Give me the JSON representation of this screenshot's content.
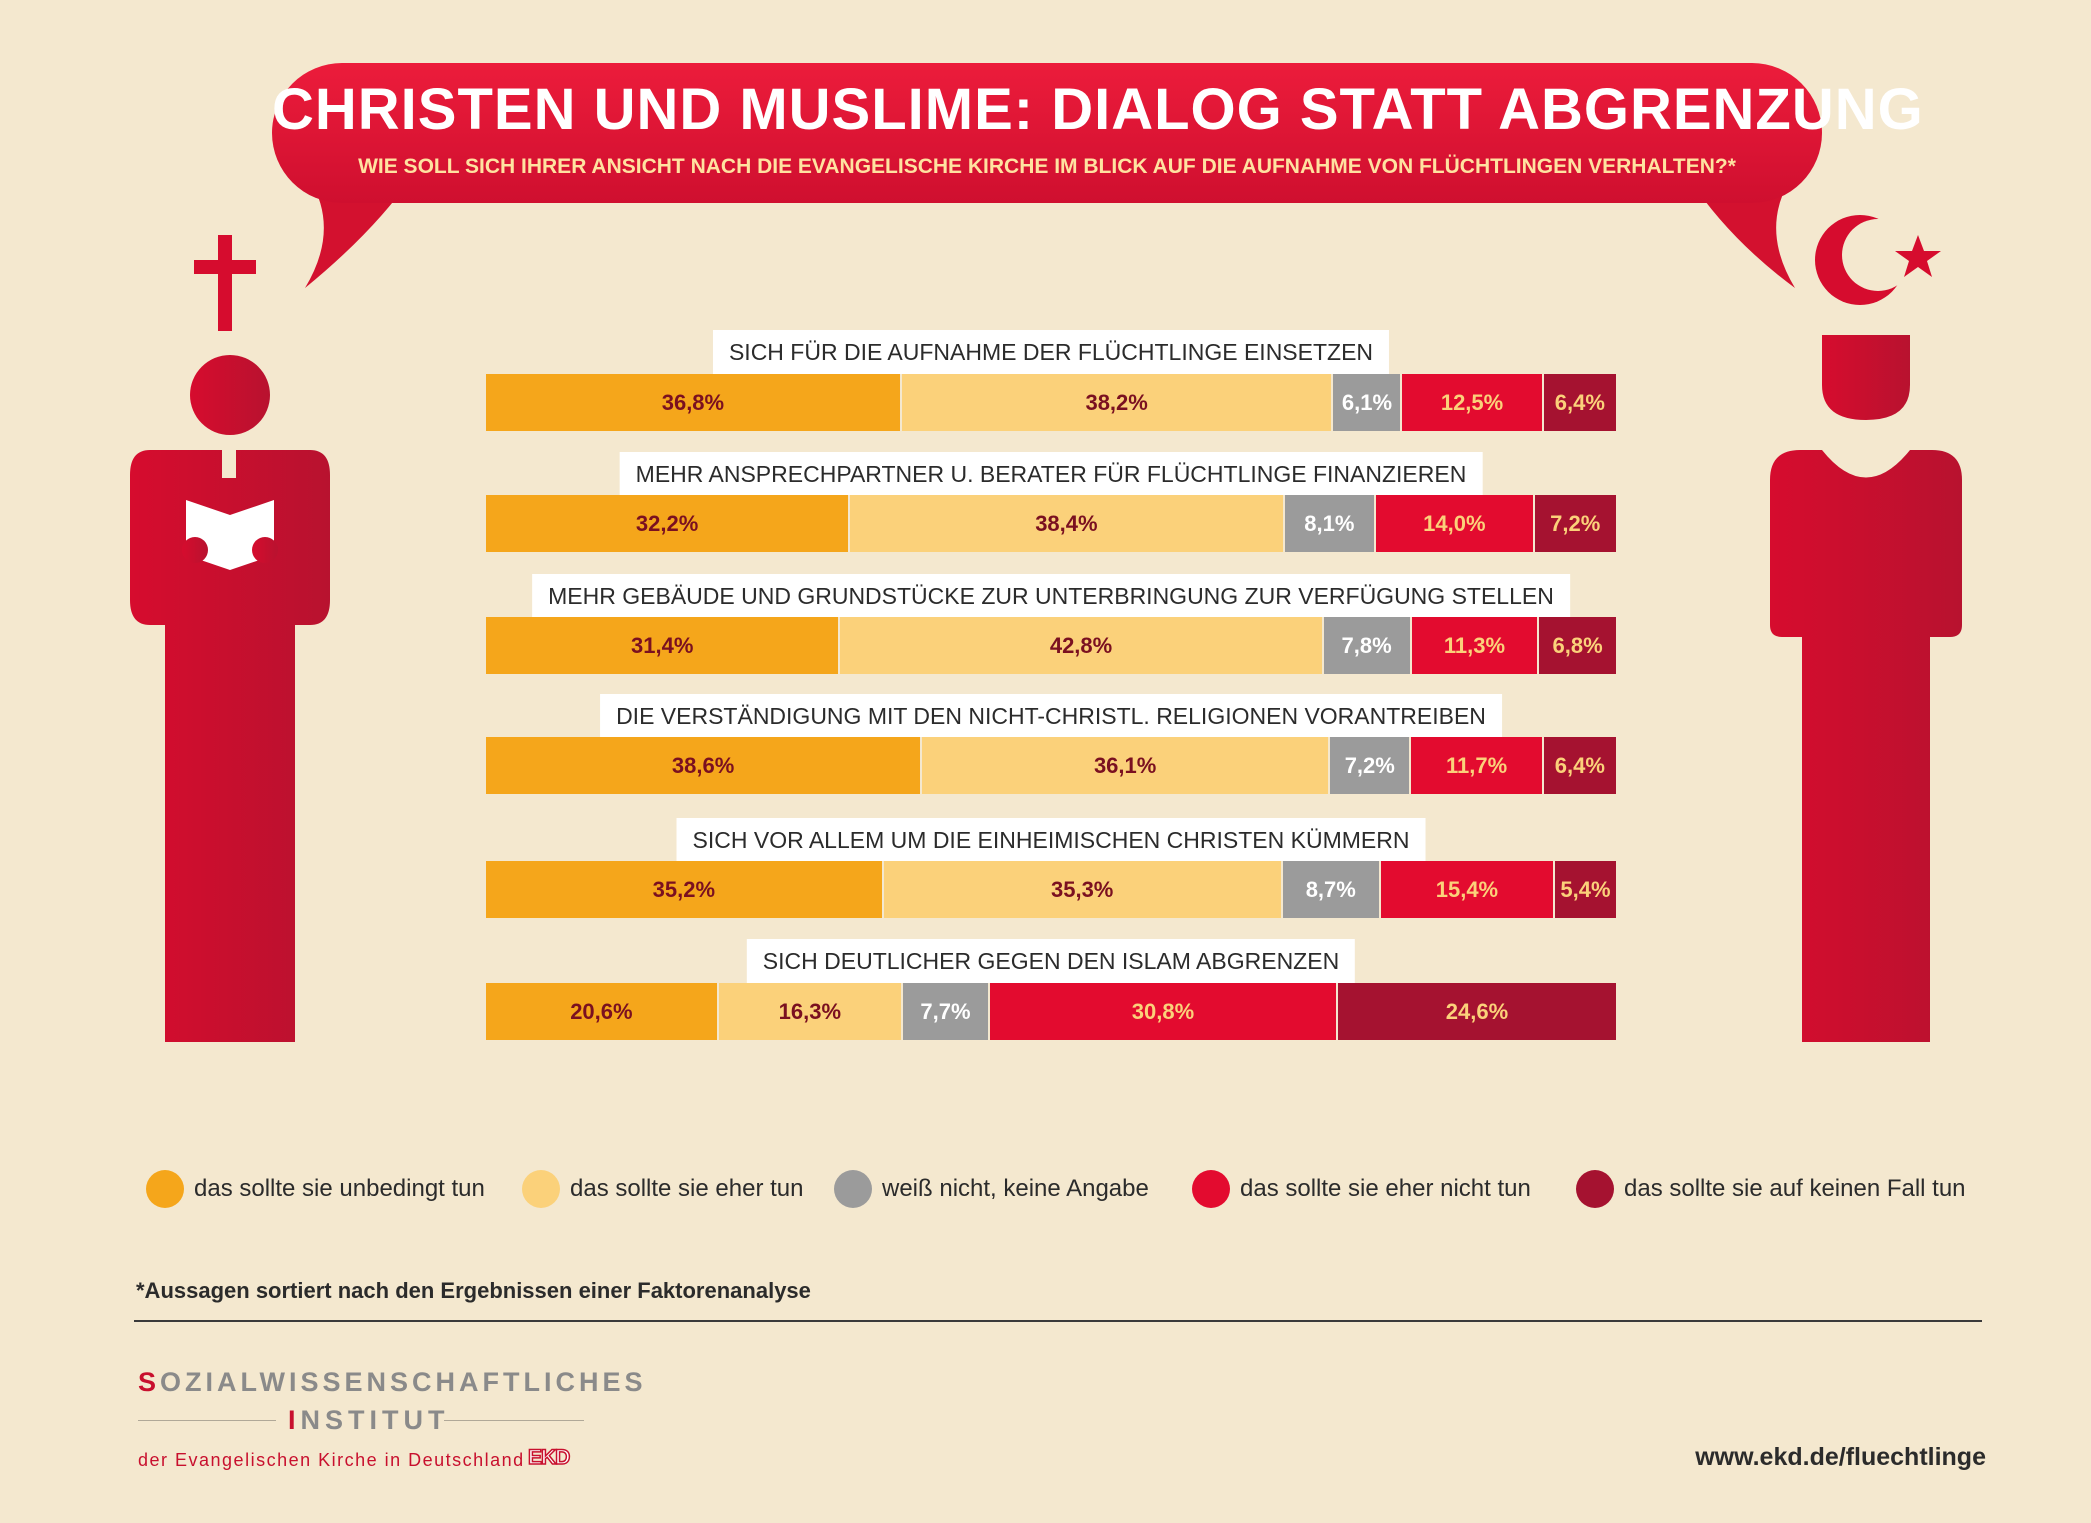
{
  "header": {
    "title": "CHRISTEN UND MUSLIME: DIALOG STATT ABGRENZUNG",
    "subtitle": "WIE SOLL SICH IHRER ANSICHT NACH DIE EVANGELISCHE KIRCHE IM BLICK AUF DIE AUFNAHME VON FLÜCHTLINGEN VERHALTEN?*"
  },
  "icons": {
    "left_figure": "christian-figure-with-cross-icon",
    "right_figure": "muslim-figure-with-crescent-icon"
  },
  "colors": {
    "background": "#f4e8cf",
    "accent": "#e30b2f",
    "unbedingt": "#f5a61b",
    "eher": "#fbd17a",
    "weiss_nicht": "#9b9b9b",
    "eher_nicht": "#e30b2f",
    "keinen_fall": "#a51230"
  },
  "chart_data": {
    "type": "bar",
    "orientation": "horizontal",
    "stacked": true,
    "unit": "%",
    "xlim": [
      0,
      100
    ],
    "grid": false,
    "legend_position": "bottom",
    "categories": [
      "SICH FÜR DIE AUFNAHME DER FLÜCHTLINGE EINSETZEN",
      "MEHR ANSPRECHPARTNER U. BERATER FÜR FLÜCHTLINGE FINANZIEREN",
      "MEHR GEBÄUDE UND GRUNDSTÜCKE ZUR UNTERBRINGUNG ZUR VERFÜGUNG STELLEN",
      "DIE VERSTÄNDIGUNG MIT DEN NICHT-CHRISTL. RELIGIONEN VORANTREIBEN",
      "SICH VOR ALLEM UM DIE EINHEIMISCHEN CHRISTEN KÜMMERN",
      "SICH DEUTLICHER GEGEN DEN ISLAM ABGRENZEN"
    ],
    "series": [
      {
        "name": "das sollte sie unbedingt tun",
        "color": "#f5a61b",
        "text_color": "#7a1020",
        "values": [
          36.8,
          32.2,
          31.4,
          38.6,
          35.2,
          20.6
        ],
        "labels": [
          "36,8%",
          "32,2%",
          "31,4%",
          "38,6%",
          "35,2%",
          "20,6%"
        ]
      },
      {
        "name": "das sollte sie eher tun",
        "color": "#fbd17a",
        "text_color": "#7a1020",
        "values": [
          38.2,
          38.4,
          42.8,
          36.1,
          35.3,
          16.3
        ],
        "labels": [
          "38,2%",
          "38,4%",
          "42,8%",
          "36,1%",
          "35,3%",
          "16,3%"
        ]
      },
      {
        "name": "weiß nicht, keine Angabe",
        "color": "#9b9b9b",
        "text_color": "#ffffff",
        "values": [
          6.1,
          8.1,
          7.8,
          7.2,
          8.7,
          7.7
        ],
        "labels": [
          "6,1%",
          "8,1%",
          "7,8%",
          "7,2%",
          "8,7%",
          "7,7%"
        ]
      },
      {
        "name": "das sollte sie eher nicht tun",
        "color": "#e30b2f",
        "text_color": "#fbd17a",
        "values": [
          12.5,
          14.0,
          11.3,
          11.7,
          15.4,
          30.8
        ],
        "labels": [
          "12,5%",
          "14,0%",
          "11,3%",
          "11,7%",
          "15,4%",
          "30,8%"
        ]
      },
      {
        "name": "das sollte sie auf keinen Fall tun",
        "color": "#a51230",
        "text_color": "#fbd17a",
        "values": [
          6.4,
          7.2,
          6.8,
          6.4,
          5.4,
          24.6
        ],
        "labels": [
          "6,4%",
          "7,2%",
          "6,8%",
          "6,4%",
          "5,4%",
          "24,6%"
        ]
      }
    ]
  },
  "footer": {
    "footnote": "*Aussagen sortiert nach den Ergebnissen einer Faktorenanalyse",
    "institute_line1_initial": "S",
    "institute_line1_rest": "OZIALWISSENSCHAFTLICHES",
    "institute_line2_initial": "I",
    "institute_line2_rest": "NSTITUT",
    "institute_line3": "der Evangelischen Kirche in Deutschland",
    "ekd_logo": "EKD",
    "url": "www.ekd.de/fluechtlinge"
  }
}
